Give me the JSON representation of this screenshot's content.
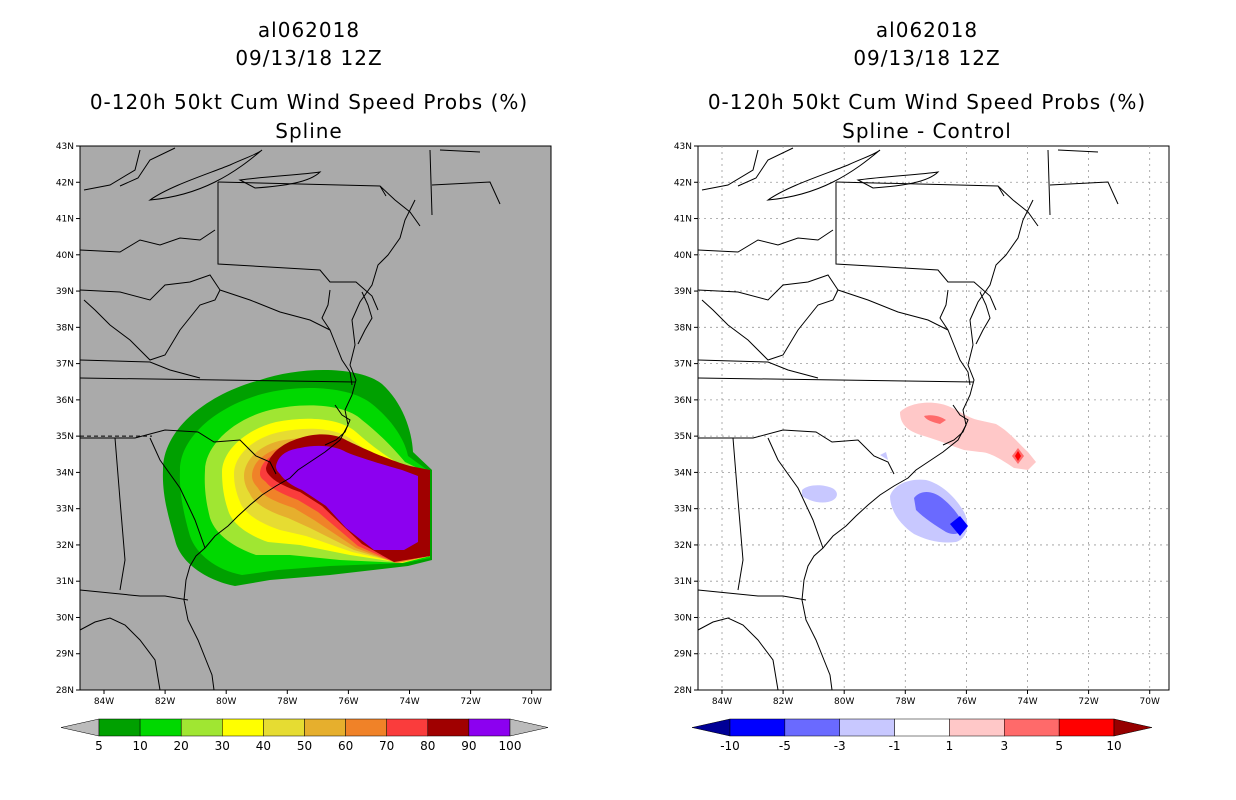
{
  "left_panel": {
    "storm_id": "al062018",
    "datetime": "09/13/18 12Z",
    "product": "0-120h 50kt Cum Wind Speed Probs (%)",
    "subtitle": "Spline",
    "colorbar": {
      "labels": [
        "5",
        "10",
        "20",
        "30",
        "40",
        "50",
        "60",
        "70",
        "80",
        "90",
        "100"
      ],
      "colors": [
        "#00a000",
        "#00d800",
        "#a0e632",
        "#ffff00",
        "#e6dc32",
        "#e6af2d",
        "#f08228",
        "#fa3c3c",
        "#a00000",
        "#8c00f0"
      ],
      "left_arrow_color": "#bbbbbb",
      "right_arrow_color": "#bbbbbb"
    }
  },
  "right_panel": {
    "storm_id": "al062018",
    "datetime": "09/13/18 12Z",
    "product": "0-120h 50kt Cum Wind Speed Probs (%)",
    "subtitle": "Spline - Control",
    "colorbar": {
      "labels": [
        "-10",
        "-5",
        "-3",
        "-1",
        "1",
        "3",
        "5",
        "10"
      ],
      "colors": [
        "#0000ff",
        "#6a6aff",
        "#c8c8ff",
        "#ffffff",
        "#ffc8c8",
        "#ff6a6a",
        "#ff0000"
      ],
      "left_arrow_color": "#000096",
      "right_arrow_color": "#960000"
    }
  },
  "map": {
    "lat_labels": [
      "43N",
      "42N",
      "41N",
      "40N",
      "39N",
      "38N",
      "37N",
      "36N",
      "35N",
      "34N",
      "33N",
      "32N",
      "31N",
      "30N",
      "29N",
      "28N"
    ],
    "lon_labels": [
      "84W",
      "82W",
      "80W",
      "78W",
      "76W",
      "74W",
      "72W",
      "70W"
    ],
    "background_color": "#aaaaaa"
  }
}
